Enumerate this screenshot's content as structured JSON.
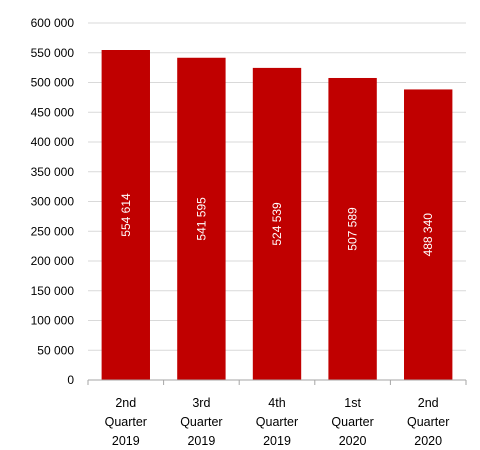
{
  "chart_data": {
    "type": "bar",
    "categories": [
      [
        "2nd",
        "Quarter",
        "2019"
      ],
      [
        "3rd",
        "Quarter",
        "2019"
      ],
      [
        "4th",
        "Quarter",
        "2019"
      ],
      [
        "1st",
        "Quarter",
        "2020"
      ],
      [
        "2nd",
        "Quarter",
        "2020"
      ]
    ],
    "values": [
      554614,
      541595,
      524539,
      507589,
      488340
    ],
    "data_labels": [
      "554 614",
      "541 595",
      "524 539",
      "507 589",
      "488 340"
    ],
    "ylim": [
      0,
      600000
    ],
    "y_ticks": [
      0,
      50000,
      100000,
      150000,
      200000,
      250000,
      300000,
      350000,
      400000,
      450000,
      500000,
      550000,
      600000
    ],
    "y_tick_labels": [
      "0",
      "50 000",
      "100 000",
      "150 000",
      "200 000",
      "250 000",
      "300 000",
      "350 000",
      "400 000",
      "450 000",
      "500 000",
      "550 000",
      "600 000"
    ],
    "grid": true,
    "legend": "none",
    "bar_color": "#c00000",
    "grid_color": "#d9d9d9",
    "axis_color": "#a6a6a6"
  }
}
